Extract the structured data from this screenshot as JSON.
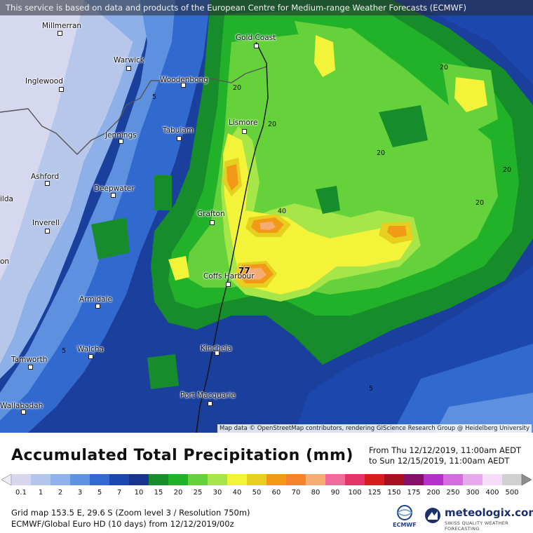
{
  "banner": "This service is based on data and products of the European Centre for Medium-range Weather Forecasts (ECMWF)",
  "cities": {
    "millmerran": "Millmerran",
    "warwick": "Warwick",
    "inglewood": "Inglewood",
    "woodenbong": "Woodenbong",
    "gold_coast": "Gold Coast",
    "lismore": "Lismore",
    "tabulam": "Tabulam",
    "jennings": "Jennings",
    "ashford": "Ashford",
    "deepwater": "Deepwater",
    "grafton": "Grafton",
    "inverell": "Inverell",
    "coffs_harbour": "Coffs Harbour",
    "armidale": "Armidale",
    "walcha": "Walcha",
    "tamworth": "Tamworth",
    "kinchela": "Kinchela",
    "port_macquarie": "Port Macquarie",
    "wallabadah": "Wallabadah",
    "edge_ilda": "ilda",
    "edge_on": "on"
  },
  "contour_labels": [
    "20",
    "20",
    "20",
    "20",
    "20",
    "20",
    "40",
    "5",
    "5",
    "5"
  ],
  "max_value": "77",
  "attribution": "Map data © OpenStreetMap contributors, rendering GIScience Research Group @ Heidelberg University",
  "title": "Accumulated Total Precipitation (mm)",
  "period": {
    "from": "From Thu 12/12/2019, 11:00am AEDT",
    "to": "to Sun 12/15/2019, 11:00am AEDT"
  },
  "scale": {
    "ticks": [
      "0.1",
      "1",
      "2",
      "3",
      "5",
      "7",
      "10",
      "15",
      "20",
      "25",
      "30",
      "40",
      "50",
      "60",
      "70",
      "80",
      "90",
      "100",
      "125",
      "150",
      "175",
      "200",
      "250",
      "300",
      "400",
      "500"
    ],
    "colors": [
      "#d6d6ee",
      "#b4c6ec",
      "#8eb2ea",
      "#5f92e0",
      "#3369d0",
      "#1c47ad",
      "#17368f",
      "#168d2a",
      "#22b22a",
      "#66d23b",
      "#a6e648",
      "#f3f33a",
      "#e6cf1e",
      "#f29a18",
      "#f5842c",
      "#f4ac73",
      "#f06a9b",
      "#e43469",
      "#d51e1e",
      "#a61020",
      "#84106a",
      "#b430c8",
      "#d56ce0",
      "#e8a8ee",
      "#f6dcf6",
      "#d0d0d0"
    ]
  },
  "meta": {
    "line1": "Grid map 153.5 E, 29.6 S (Zoom level 3 / Resolution 750m)",
    "line2": "ECMWF/Global Euro HD (10 days) from  12/12/2019/00z"
  },
  "logos": {
    "ecmwf": "ECMWF",
    "meteologix": "meteologix.com",
    "meteologix_tagline": "SWISS QUALITY WEATHER FORECASTING"
  }
}
